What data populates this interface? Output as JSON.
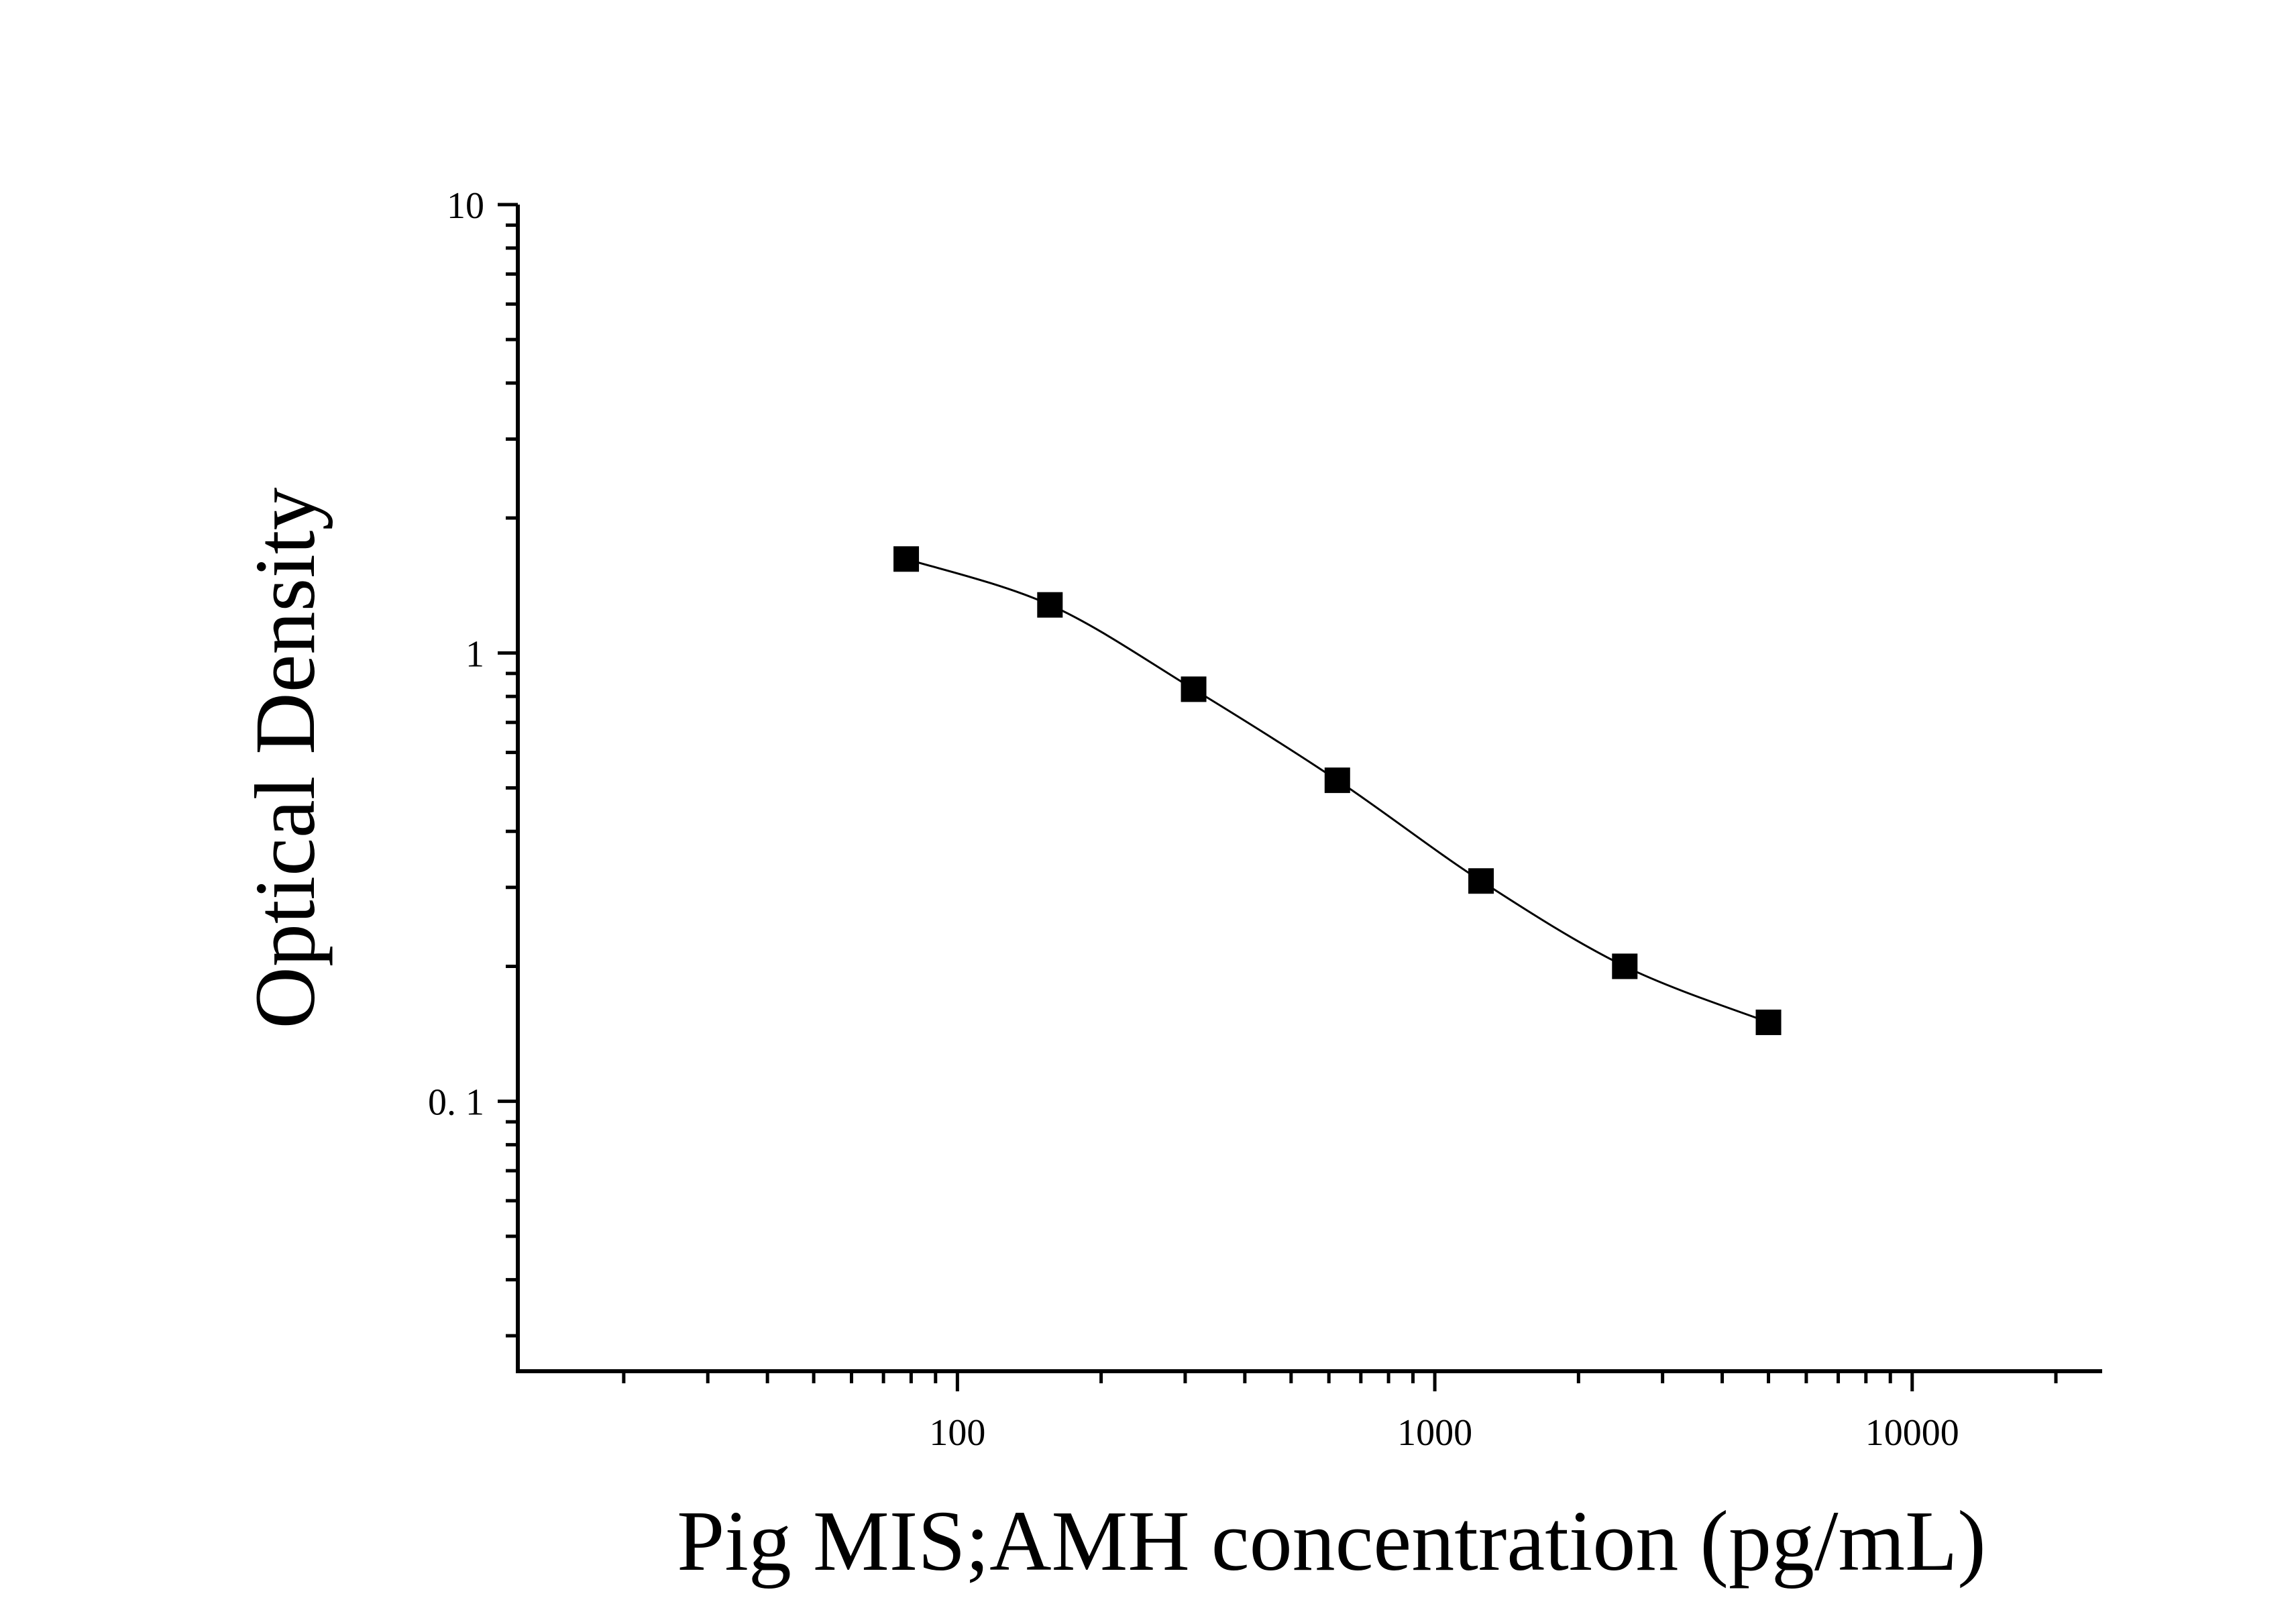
{
  "chart_data": {
    "type": "scatter",
    "title": "",
    "xlabel": "Pig MIS;AMH concentration (pg/mL)",
    "ylabel": "Optical Density",
    "x_scale": "log",
    "y_scale": "log",
    "xlim": [
      12,
      25000
    ],
    "ylim": [
      0.025,
      10
    ],
    "x_tick_labels": [
      {
        "value": 100,
        "label": "100"
      },
      {
        "value": 1000,
        "label": "1000"
      },
      {
        "value": 10000,
        "label": "10000"
      }
    ],
    "y_tick_labels": [
      {
        "value": 10,
        "label": "10"
      },
      {
        "value": 1,
        "label": "1"
      },
      {
        "value": 0.1,
        "label": "0. 1"
      }
    ],
    "grid": false,
    "legend": "none",
    "marker": "square",
    "color": "#000000",
    "series": [
      {
        "x": [
          78.125,
          156.25,
          312.5,
          625,
          1250,
          2500,
          5000
        ],
        "y": [
          1.62,
          1.28,
          0.83,
          0.52,
          0.31,
          0.2,
          0.15
        ]
      }
    ],
    "fit_curve": "smooth"
  }
}
